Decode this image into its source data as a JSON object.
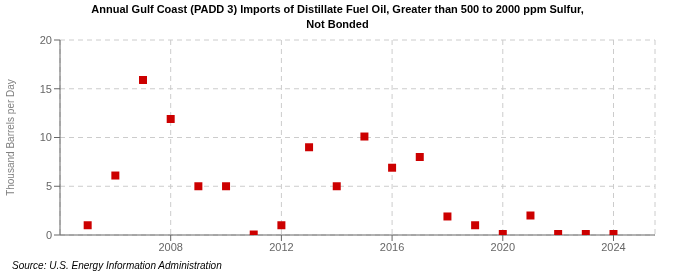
{
  "chart_data": {
    "type": "scatter",
    "title": "Annual Gulf Coast (PADD 3) Imports of Distillate Fuel Oil, Greater than 500 to 2000 ppm Sulfur,\nNot Bonded",
    "ylabel": "Thousand Barrels per Day",
    "source": "Source: U.S. Energy Information Administration",
    "x": [
      2005,
      2006,
      2007,
      2008,
      2009,
      2010,
      2011,
      2012,
      2013,
      2014,
      2015,
      2016,
      2017,
      2018,
      2019,
      2020,
      2021,
      2022,
      2023,
      2024
    ],
    "values": [
      1.0,
      6.1,
      15.9,
      11.9,
      5.0,
      5.0,
      0.05,
      1.0,
      9.0,
      5.0,
      10.1,
      6.9,
      8.0,
      1.9,
      1.0,
      0.1,
      2.0,
      0.1,
      0.1,
      0.1
    ],
    "color": "#cc0000",
    "marker": "square",
    "xlim": [
      2004.0,
      2025.5
    ],
    "ylim": [
      0,
      20
    ],
    "xticks": [
      2008,
      2012,
      2016,
      2020,
      2024
    ],
    "yticks": [
      0,
      5,
      10,
      15,
      20
    ],
    "grid": true
  }
}
